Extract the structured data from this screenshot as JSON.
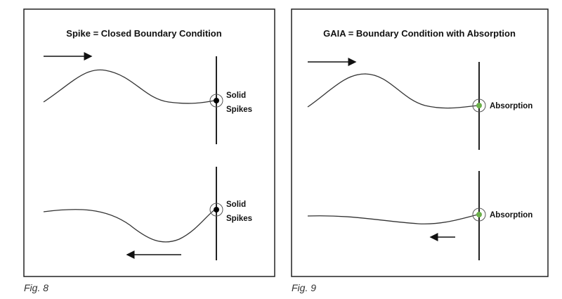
{
  "panels": [
    {
      "title": "Spike = Closed Boundary Condition",
      "top_label": [
        "Solid",
        "Spikes"
      ],
      "bottom_label": [
        "Solid",
        "Spikes"
      ],
      "caption": "Fig. 8"
    },
    {
      "title": "GAIA = Boundary Condition with Absorption",
      "top_label": [
        "Absorption"
      ],
      "bottom_label": [
        "Absorption"
      ],
      "caption": "Fig. 9"
    }
  ]
}
